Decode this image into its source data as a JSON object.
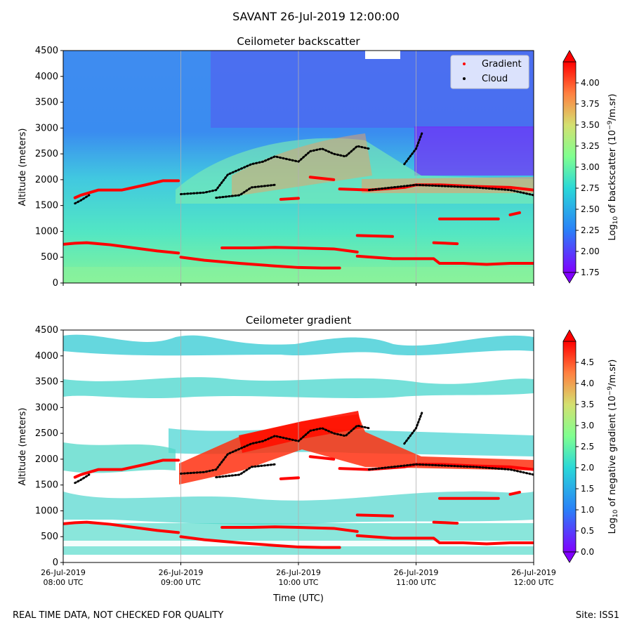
{
  "figure": {
    "suptitle": "SAVANT 26-Jul-2019 12:00:00",
    "footer_left": "REAL TIME DATA, NOT CHECKED FOR QUALITY",
    "footer_right": "Site: ISS1"
  },
  "chart_data": [
    {
      "type": "heatmap",
      "title": "Ceilometer backscatter",
      "ylabel": "Altitude (meters)",
      "ylim": [
        0,
        4500
      ],
      "yticks": [
        "0",
        "500",
        "1000",
        "1500",
        "2000",
        "2500",
        "3000",
        "3500",
        "4000",
        "4500"
      ],
      "xlim_hours": [
        8,
        12
      ],
      "xtick_labels": [
        "",
        "",
        "",
        "",
        ""
      ],
      "grid": "vertical",
      "colorbar": {
        "label": "Log10 of backscatter (10^-9/m.sr)",
        "range": [
          1.75,
          4.25
        ],
        "ticks": [
          "1.75",
          "2.00",
          "2.25",
          "2.50",
          "2.75",
          "3.00",
          "3.25",
          "3.50",
          "3.75",
          "4.00"
        ]
      },
      "legend": {
        "placement": "top-right",
        "entries": [
          {
            "label": "Gradient",
            "color": "#ff0000"
          },
          {
            "label": "Cloud",
            "color": "#000000"
          }
        ]
      },
      "series": [
        {
          "name": "Gradient",
          "color": "#ff0000",
          "segments": [
            {
              "x": [
                8.0,
                8.1,
                8.2,
                8.4,
                8.6,
                8.8,
                8.98
              ],
              "y": [
                750,
                770,
                780,
                740,
                680,
                620,
                580
              ]
            },
            {
              "x": [
                9.0,
                9.2,
                9.5,
                9.8,
                10.0,
                10.2,
                10.35
              ],
              "y": [
                500,
                440,
                380,
                330,
                300,
                290,
                290
              ]
            },
            {
              "x": [
                9.35,
                9.6,
                9.8,
                10.0,
                10.3,
                10.5
              ],
              "y": [
                680,
                680,
                690,
                680,
                660,
                600
              ]
            },
            {
              "x": [
                10.5,
                10.8,
                11.0,
                11.15,
                11.2,
                11.4,
                11.6,
                11.8,
                12.0
              ],
              "y": [
                520,
                470,
                470,
                470,
                380,
                380,
                360,
                380,
                380
              ]
            },
            {
              "x": [
                11.15,
                11.35
              ],
              "y": [
                780,
                760
              ]
            },
            {
              "x": [
                10.5,
                10.8
              ],
              "y": [
                920,
                900
              ]
            },
            {
              "x": [
                11.2,
                11.7
              ],
              "y": [
                1240,
                1240
              ]
            },
            {
              "x": [
                11.8,
                11.88
              ],
              "y": [
                1320,
                1360
              ]
            },
            {
              "x": [
                8.1,
                8.15,
                8.3,
                8.5,
                8.7,
                8.85,
                8.98
              ],
              "y": [
                1650,
                1700,
                1800,
                1800,
                1900,
                1980,
                1980
              ]
            },
            {
              "x": [
                9.85,
                10.0
              ],
              "y": [
                1620,
                1640
              ]
            },
            {
              "x": [
                10.1,
                10.3
              ],
              "y": [
                2050,
                2000
              ]
            },
            {
              "x": [
                10.35,
                10.6,
                10.9,
                11.0,
                11.2,
                11.5,
                11.8,
                12.0
              ],
              "y": [
                1820,
                1800,
                1850,
                1900,
                1900,
                1870,
                1850,
                1800
              ]
            }
          ]
        },
        {
          "name": "Cloud",
          "color": "#000000",
          "segments": [
            {
              "x": [
                8.1,
                8.15,
                8.22
              ],
              "y": [
                1540,
                1600,
                1700
              ]
            },
            {
              "x": [
                9.0,
                9.2,
                9.3,
                9.4,
                9.5,
                9.6,
                9.7,
                9.8,
                9.9,
                10.0,
                10.1,
                10.2,
                10.3,
                10.4,
                10.5,
                10.6
              ],
              "y": [
                1720,
                1750,
                1800,
                2100,
                2200,
                2300,
                2350,
                2450,
                2400,
                2350,
                2550,
                2600,
                2500,
                2450,
                2650,
                2600
              ]
            },
            {
              "x": [
                9.3,
                9.5,
                9.6,
                9.8
              ],
              "y": [
                1650,
                1700,
                1850,
                1900
              ]
            },
            {
              "x": [
                10.9,
                11.0,
                11.05
              ],
              "y": [
                2300,
                2600,
                2900
              ]
            },
            {
              "x": [
                10.6,
                10.8,
                11.0,
                11.2,
                11.5,
                11.8,
                12.0
              ],
              "y": [
                1800,
                1850,
                1900,
                1880,
                1850,
                1800,
                1700
              ]
            }
          ]
        }
      ]
    },
    {
      "type": "heatmap",
      "title": "Ceilometer gradient",
      "ylabel": "Altitude (meters)",
      "xlabel": "Time (UTC)",
      "ylim": [
        0,
        4500
      ],
      "yticks": [
        "0",
        "500",
        "1000",
        "1500",
        "2000",
        "2500",
        "3000",
        "3500",
        "4000",
        "4500"
      ],
      "xlim_hours": [
        8,
        12
      ],
      "xtick_labels": [
        [
          "26-Jul-2019",
          "08:00 UTC"
        ],
        [
          "26-Jul-2019",
          "09:00 UTC"
        ],
        [
          "26-Jul-2019",
          "10:00 UTC"
        ],
        [
          "26-Jul-2019",
          "11:00 UTC"
        ],
        [
          "26-Jul-2019",
          "12:00 UTC"
        ]
      ],
      "grid": "vertical",
      "colorbar": {
        "label": "Log10 of negative gradient (10^-9/m.sr)",
        "range": [
          0.0,
          5.0
        ],
        "ticks": [
          "0.0",
          "0.5",
          "1.0",
          "1.5",
          "2.0",
          "2.5",
          "3.0",
          "3.5",
          "4.0",
          "4.5"
        ]
      },
      "series": [
        {
          "name": "Gradient",
          "color": "#ff0000",
          "segments": [
            {
              "x": [
                8.0,
                8.1,
                8.2,
                8.4,
                8.6,
                8.8,
                8.98
              ],
              "y": [
                750,
                770,
                780,
                740,
                680,
                620,
                580
              ]
            },
            {
              "x": [
                9.0,
                9.2,
                9.5,
                9.8,
                10.0,
                10.2,
                10.35
              ],
              "y": [
                500,
                440,
                380,
                330,
                300,
                290,
                290
              ]
            },
            {
              "x": [
                9.35,
                9.6,
                9.8,
                10.0,
                10.3,
                10.5
              ],
              "y": [
                680,
                680,
                690,
                680,
                660,
                600
              ]
            },
            {
              "x": [
                10.5,
                10.8,
                11.0,
                11.15,
                11.2,
                11.4,
                11.6,
                11.8,
                12.0
              ],
              "y": [
                520,
                470,
                470,
                470,
                380,
                380,
                360,
                380,
                380
              ]
            },
            {
              "x": [
                11.15,
                11.35
              ],
              "y": [
                780,
                760
              ]
            },
            {
              "x": [
                10.5,
                10.8
              ],
              "y": [
                920,
                900
              ]
            },
            {
              "x": [
                11.2,
                11.7
              ],
              "y": [
                1240,
                1240
              ]
            },
            {
              "x": [
                11.8,
                11.88
              ],
              "y": [
                1320,
                1360
              ]
            },
            {
              "x": [
                8.1,
                8.15,
                8.3,
                8.5,
                8.7,
                8.85,
                8.98
              ],
              "y": [
                1650,
                1700,
                1800,
                1800,
                1900,
                1980,
                1980
              ]
            },
            {
              "x": [
                9.85,
                10.0
              ],
              "y": [
                1620,
                1640
              ]
            },
            {
              "x": [
                10.1,
                10.3
              ],
              "y": [
                2050,
                2000
              ]
            },
            {
              "x": [
                10.35,
                10.6,
                10.9,
                11.0,
                11.2,
                11.5,
                11.8,
                12.0
              ],
              "y": [
                1820,
                1800,
                1850,
                1900,
                1900,
                1870,
                1850,
                1800
              ]
            }
          ]
        },
        {
          "name": "Cloud",
          "color": "#000000",
          "segments": [
            {
              "x": [
                8.1,
                8.15,
                8.22
              ],
              "y": [
                1540,
                1600,
                1700
              ]
            },
            {
              "x": [
                9.0,
                9.2,
                9.3,
                9.4,
                9.5,
                9.6,
                9.7,
                9.8,
                9.9,
                10.0,
                10.1,
                10.2,
                10.3,
                10.4,
                10.5,
                10.6
              ],
              "y": [
                1720,
                1750,
                1800,
                2100,
                2200,
                2300,
                2350,
                2450,
                2400,
                2350,
                2550,
                2600,
                2500,
                2450,
                2650,
                2600
              ]
            },
            {
              "x": [
                9.3,
                9.5,
                9.6,
                9.8
              ],
              "y": [
                1650,
                1700,
                1850,
                1900
              ]
            },
            {
              "x": [
                10.9,
                11.0,
                11.05
              ],
              "y": [
                2300,
                2600,
                2900
              ]
            },
            {
              "x": [
                10.6,
                10.8,
                11.0,
                11.2,
                11.5,
                11.8,
                12.0
              ],
              "y": [
                1800,
                1850,
                1900,
                1880,
                1850,
                1800,
                1700
              ]
            }
          ]
        }
      ]
    }
  ]
}
